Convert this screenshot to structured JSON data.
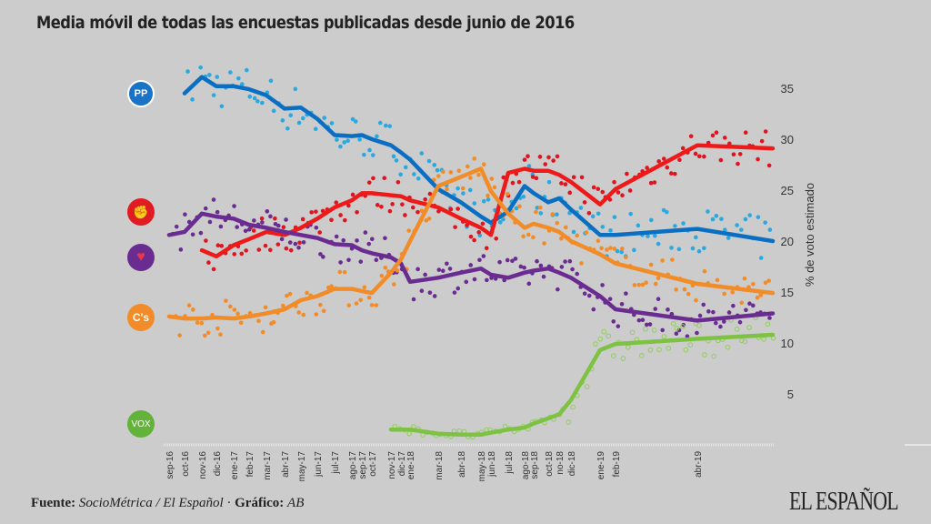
{
  "title": "Media móvil de todas las encuestas publicadas desde junio de 2016",
  "footer": {
    "source_label": "Fuente:",
    "source": "SocioMétrica / El Español",
    "sep": " · ",
    "graphic_label": "Gráfico:",
    "graphic": "AB"
  },
  "brand": "EL ESPAÑOL",
  "parties": [
    {
      "name": "PP",
      "logo_text": "PP",
      "color": "#0a6fc2",
      "dot_color": "#29a9e0"
    },
    {
      "name": "PSOE",
      "logo_text": "",
      "color": "#ee1a1a",
      "dot_color": "#e0141e"
    },
    {
      "name": "Podemos",
      "logo_text": "",
      "color": "#6a2c91",
      "dot_color": "#6a2c91"
    },
    {
      "name": "Cs",
      "logo_text": "C's",
      "color": "#f28c28",
      "dot_color": "#f28c28"
    },
    {
      "name": "Vox",
      "logo_text": "VOX",
      "color": "#7dc242",
      "dot_color": "#8fcf5a"
    }
  ],
  "chart_data": {
    "type": "line",
    "title": "Media móvil de todas las encuestas publicadas desde junio de 2016",
    "ylabel": "% de voto estimado",
    "xlabel": "",
    "ylim": [
      0,
      37
    ],
    "yticks": [
      5,
      10,
      15,
      20,
      25,
      30,
      35
    ],
    "grid": false,
    "y_axis_side": "right",
    "categories": [
      "sep-16",
      "oct-16",
      "nov-16",
      "dic-16",
      "ene-17",
      "feb-17",
      "mar-17",
      "abr-17",
      "may-17",
      "jun-17",
      "jul-17",
      "ago-17",
      "sep-17",
      "oct-17",
      "nov-17",
      "dic-17",
      "ene-18",
      "mar-18",
      "abr-18",
      "may-18",
      "jun-18",
      "jul-18",
      "ago-18",
      "sep-18",
      "oct-18",
      "no-18",
      "dic-18",
      "ene-19",
      "feb-19",
      "abr-19",
      ""
    ],
    "series": [
      {
        "name": "PP",
        "values": [
          null,
          34.5,
          36.1,
          35.2,
          35.2,
          34.9,
          34.3,
          33.0,
          33.1,
          32.0,
          30.4,
          30.3,
          30.4,
          30.0,
          29.4,
          28.7,
          28.0,
          25.1,
          23.8,
          22.4,
          21.8,
          22.9,
          25.4,
          24.7,
          23.8,
          24.2,
          23.1,
          20.6,
          20.6,
          21.2,
          20.0
        ]
      },
      {
        "name": "PSOE",
        "values": [
          null,
          null,
          19.1,
          18.5,
          19.6,
          20.2,
          20.9,
          20.6,
          21.3,
          22.2,
          23.3,
          24.0,
          24.7,
          24.7,
          24.5,
          24.4,
          24.0,
          23.3,
          22.2,
          21.3,
          20.6,
          26.7,
          27.1,
          26.9,
          26.9,
          26.5,
          25.8,
          23.6,
          25.1,
          29.4,
          29.1
        ]
      },
      {
        "name": "Podemos",
        "values": [
          20.6,
          20.9,
          22.7,
          22.4,
          22.2,
          21.6,
          21.3,
          20.9,
          20.6,
          20.3,
          19.7,
          19.6,
          19.1,
          18.8,
          18.4,
          17.8,
          16.0,
          16.4,
          16.9,
          17.3,
          16.7,
          16.4,
          16.9,
          17.1,
          17.3,
          16.9,
          16.4,
          14.6,
          13.3,
          12.2,
          12.9
        ]
      },
      {
        "name": "Cs",
        "values": [
          12.6,
          12.4,
          12.4,
          12.5,
          12.4,
          12.6,
          12.9,
          13.3,
          14.2,
          14.6,
          15.3,
          15.3,
          15.1,
          14.9,
          16.9,
          18.2,
          20.0,
          25.4,
          26.3,
          27.1,
          24.9,
          22.7,
          21.3,
          21.7,
          21.3,
          20.9,
          20.0,
          18.7,
          17.8,
          15.8,
          14.9
        ]
      },
      {
        "name": "Vox",
        "values": [
          null,
          null,
          null,
          null,
          null,
          null,
          null,
          null,
          null,
          null,
          null,
          null,
          null,
          null,
          1.5,
          1.5,
          1.5,
          1.1,
          1.0,
          1.0,
          1.2,
          1.5,
          1.7,
          2.1,
          2.6,
          3.0,
          4.4,
          9.3,
          9.9,
          10.4,
          10.8
        ]
      }
    ]
  }
}
